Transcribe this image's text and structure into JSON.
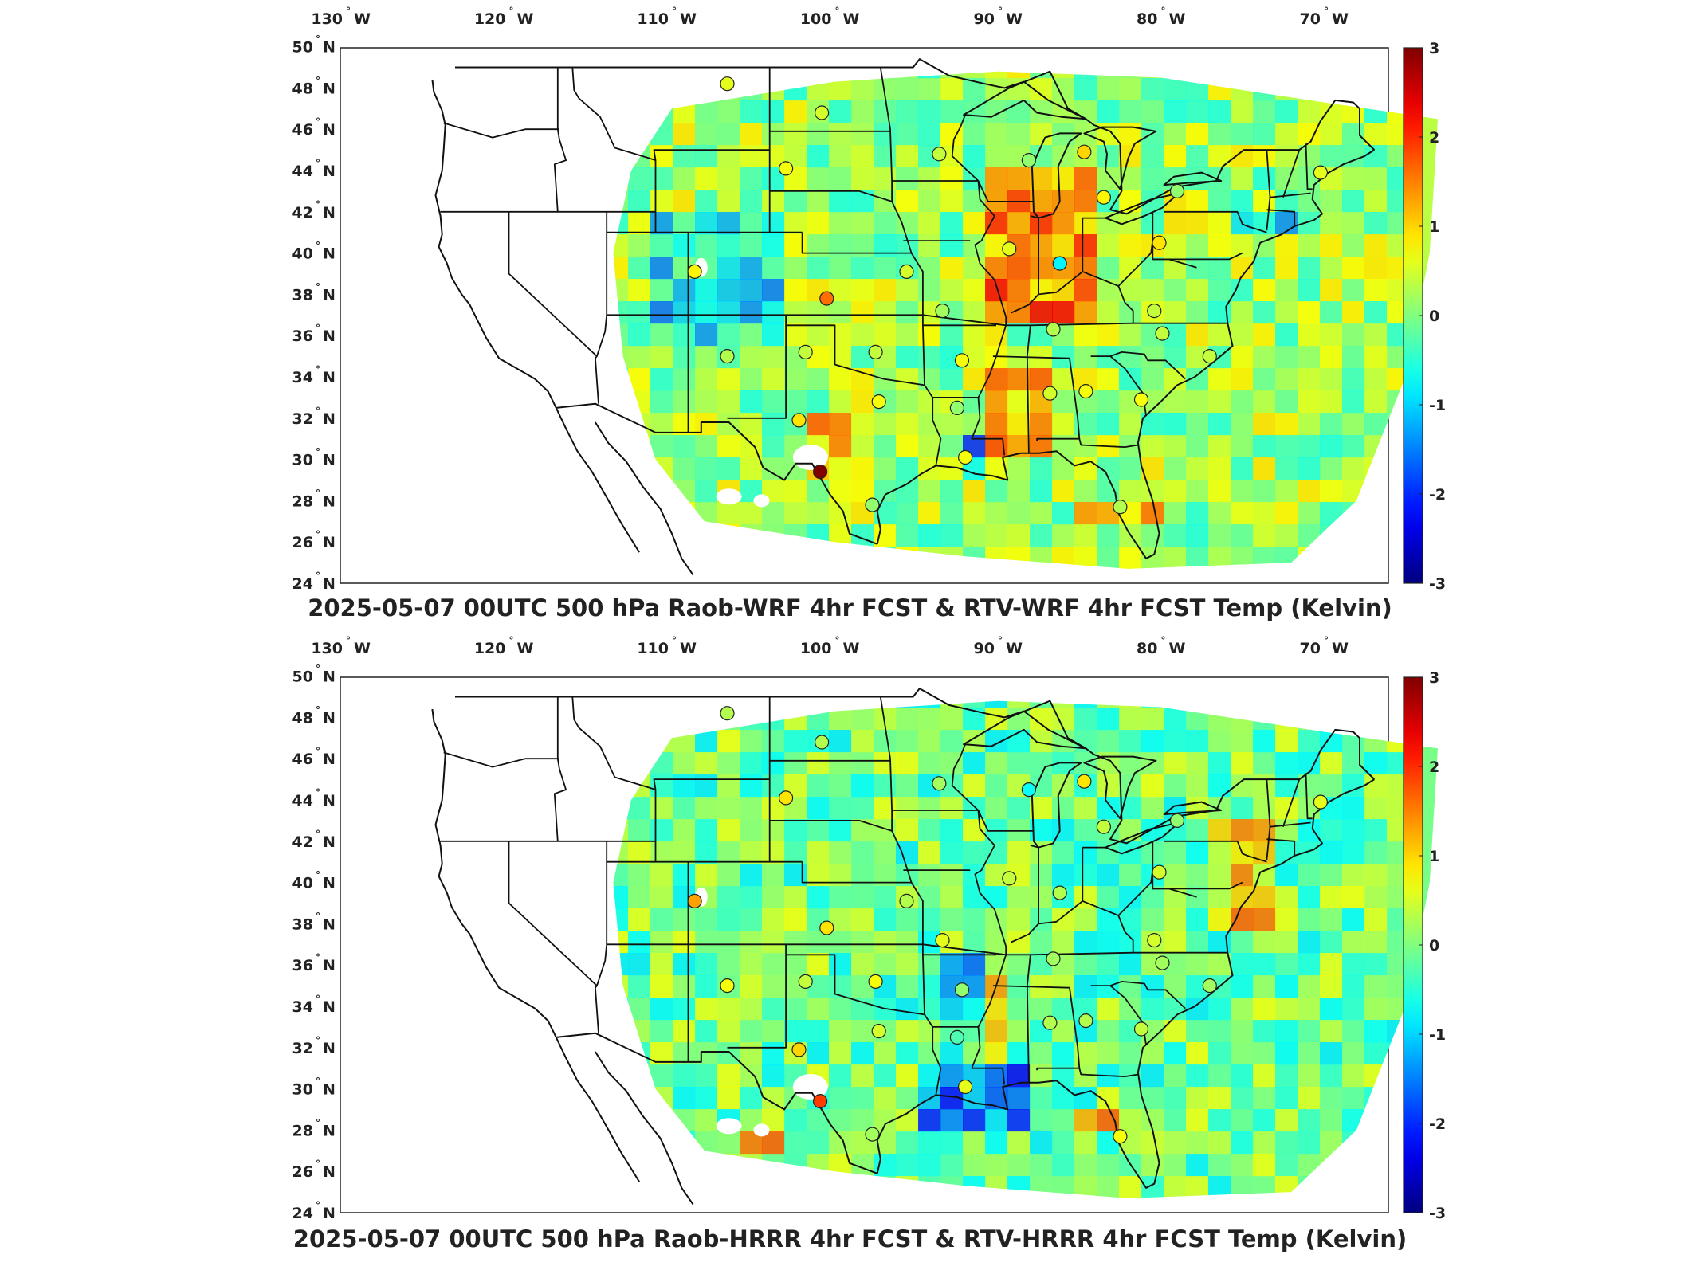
{
  "panels": [
    {
      "id": "wrf",
      "title": "2025-05-07 00UTC 500 hPa Raob-WRF 4hr FCST & RTV-WRF 4hr FCST Temp (Kelvin)",
      "dominant": "warm",
      "stations": [
        {
          "lon": -106.6,
          "lat": 48.2,
          "v": 0.6
        },
        {
          "lon": -100.8,
          "lat": 46.8,
          "v": 0.5
        },
        {
          "lon": -93.6,
          "lat": 44.8,
          "v": 0.4
        },
        {
          "lon": -88.1,
          "lat": 44.5,
          "v": 0.1
        },
        {
          "lon": -84.7,
          "lat": 44.9,
          "v": 1.0
        },
        {
          "lon": -83.5,
          "lat": 42.7,
          "v": 0.8
        },
        {
          "lon": -79.0,
          "lat": 43.0,
          "v": 0.1
        },
        {
          "lon": -70.2,
          "lat": 43.9,
          "v": 0.6
        },
        {
          "lon": -103.0,
          "lat": 44.1,
          "v": 0.7
        },
        {
          "lon": -108.6,
          "lat": 39.1,
          "v": 0.8
        },
        {
          "lon": -100.5,
          "lat": 37.8,
          "v": 1.6
        },
        {
          "lon": -95.6,
          "lat": 39.1,
          "v": 0.5
        },
        {
          "lon": -89.3,
          "lat": 40.2,
          "v": 0.6
        },
        {
          "lon": -86.2,
          "lat": 39.5,
          "v": -0.8
        },
        {
          "lon": -80.1,
          "lat": 40.5,
          "v": 0.9
        },
        {
          "lon": -93.4,
          "lat": 37.2,
          "v": 0.2
        },
        {
          "lon": -86.6,
          "lat": 36.3,
          "v": 0.3
        },
        {
          "lon": -80.4,
          "lat": 37.2,
          "v": 0.4
        },
        {
          "lon": -79.9,
          "lat": 36.1,
          "v": 0.4
        },
        {
          "lon": -77.0,
          "lat": 35.0,
          "v": 0.4
        },
        {
          "lon": -106.6,
          "lat": 35.0,
          "v": 0.3
        },
        {
          "lon": -101.8,
          "lat": 35.2,
          "v": 0.4
        },
        {
          "lon": -97.5,
          "lat": 35.2,
          "v": 0.4
        },
        {
          "lon": -92.2,
          "lat": 34.8,
          "v": 0.7
        },
        {
          "lon": -97.3,
          "lat": 32.8,
          "v": 0.7
        },
        {
          "lon": -102.2,
          "lat": 31.9,
          "v": 0.9
        },
        {
          "lon": -92.5,
          "lat": 32.5,
          "v": 0.1
        },
        {
          "lon": -86.8,
          "lat": 33.2,
          "v": 0.5
        },
        {
          "lon": -84.6,
          "lat": 33.3,
          "v": 0.7
        },
        {
          "lon": -81.2,
          "lat": 32.9,
          "v": 0.7
        },
        {
          "lon": -100.9,
          "lat": 29.4,
          "v": 3.0
        },
        {
          "lon": -97.7,
          "lat": 27.8,
          "v": 0.1
        },
        {
          "lon": -92.0,
          "lat": 30.1,
          "v": 0.7
        },
        {
          "lon": -82.5,
          "lat": 27.7,
          "v": 0.3
        }
      ]
    },
    {
      "id": "hrrr",
      "title": "2025-05-07 00UTC 500 hPa Raob-HRRR 4hr FCST & RTV-HRRR 4hr FCST Temp (Kelvin)",
      "dominant": "cool",
      "stations": [
        {
          "lon": -106.6,
          "lat": 48.2,
          "v": 0.3
        },
        {
          "lon": -100.8,
          "lat": 46.8,
          "v": 0.3
        },
        {
          "lon": -93.6,
          "lat": 44.8,
          "v": 0.2
        },
        {
          "lon": -88.1,
          "lat": 44.5,
          "v": -0.7
        },
        {
          "lon": -84.7,
          "lat": 44.9,
          "v": 0.9
        },
        {
          "lon": -83.5,
          "lat": 42.7,
          "v": 0.4
        },
        {
          "lon": -79.0,
          "lat": 43.0,
          "v": 0.1
        },
        {
          "lon": -70.2,
          "lat": 43.9,
          "v": 0.6
        },
        {
          "lon": -103.0,
          "lat": 44.1,
          "v": 0.9
        },
        {
          "lon": -108.6,
          "lat": 39.1,
          "v": 1.3
        },
        {
          "lon": -100.5,
          "lat": 37.8,
          "v": 0.9
        },
        {
          "lon": -95.6,
          "lat": 39.1,
          "v": 0.3
        },
        {
          "lon": -89.3,
          "lat": 40.2,
          "v": 0.4
        },
        {
          "lon": -86.2,
          "lat": 39.5,
          "v": 0.3
        },
        {
          "lon": -80.1,
          "lat": 40.5,
          "v": 0.5
        },
        {
          "lon": -93.4,
          "lat": 37.2,
          "v": 0.6
        },
        {
          "lon": -86.6,
          "lat": 36.3,
          "v": 0.2
        },
        {
          "lon": -80.4,
          "lat": 37.2,
          "v": 0.5
        },
        {
          "lon": -79.9,
          "lat": 36.1,
          "v": 0.2
        },
        {
          "lon": -77.0,
          "lat": 35.0,
          "v": 0.2
        },
        {
          "lon": -106.6,
          "lat": 35.0,
          "v": 0.7
        },
        {
          "lon": -101.8,
          "lat": 35.2,
          "v": 0.4
        },
        {
          "lon": -97.5,
          "lat": 35.2,
          "v": 0.7
        },
        {
          "lon": -92.2,
          "lat": 34.8,
          "v": 0.1
        },
        {
          "lon": -97.3,
          "lat": 32.8,
          "v": 0.5
        },
        {
          "lon": -102.2,
          "lat": 31.9,
          "v": 1.0
        },
        {
          "lon": -92.5,
          "lat": 32.5,
          "v": -0.3
        },
        {
          "lon": -86.8,
          "lat": 33.2,
          "v": 0.3
        },
        {
          "lon": -84.6,
          "lat": 33.3,
          "v": 0.3
        },
        {
          "lon": -81.2,
          "lat": 32.9,
          "v": 0.4
        },
        {
          "lon": -100.9,
          "lat": 29.4,
          "v": 1.9
        },
        {
          "lon": -97.7,
          "lat": 27.8,
          "v": 0.2
        },
        {
          "lon": -92.0,
          "lat": 30.1,
          "v": 0.6
        },
        {
          "lon": -82.5,
          "lat": 27.7,
          "v": 0.7
        }
      ]
    }
  ],
  "axes": {
    "lon_ticks": [
      {
        "value": -130,
        "num": "130",
        "hemi": "W"
      },
      {
        "value": -120,
        "num": "120",
        "hemi": "W"
      },
      {
        "value": -110,
        "num": "110",
        "hemi": "W"
      },
      {
        "value": -100,
        "num": "100",
        "hemi": "W"
      },
      {
        "value": -90,
        "num": "90",
        "hemi": "W"
      },
      {
        "value": -80,
        "num": "80",
        "hemi": "W"
      },
      {
        "value": -70,
        "num": "70",
        "hemi": "W"
      }
    ],
    "lat_ticks": [
      {
        "value": 50,
        "num": "50",
        "hemi": "N"
      },
      {
        "value": 48,
        "num": "48",
        "hemi": "N"
      },
      {
        "value": 46,
        "num": "46",
        "hemi": "N"
      },
      {
        "value": 44,
        "num": "44",
        "hemi": "N"
      },
      {
        "value": 42,
        "num": "42",
        "hemi": "N"
      },
      {
        "value": 40,
        "num": "40",
        "hemi": "N"
      },
      {
        "value": 38,
        "num": "38",
        "hemi": "N"
      },
      {
        "value": 36,
        "num": "36",
        "hemi": "N"
      },
      {
        "value": 34,
        "num": "34",
        "hemi": "N"
      },
      {
        "value": 32,
        "num": "32",
        "hemi": "N"
      },
      {
        "value": 30,
        "num": "30",
        "hemi": "N"
      },
      {
        "value": 28,
        "num": "28",
        "hemi": "N"
      },
      {
        "value": 26,
        "num": "26",
        "hemi": "N"
      },
      {
        "value": 24,
        "num": "24",
        "hemi": "N"
      }
    ],
    "degree_symbol": "°"
  },
  "colorbar": {
    "min": -3,
    "max": 3,
    "ticks": [
      {
        "value": 3,
        "label": "3"
      },
      {
        "value": 2,
        "label": "2"
      },
      {
        "value": 1,
        "label": "1"
      },
      {
        "value": 0,
        "label": "0"
      },
      {
        "value": -1,
        "label": "-1"
      },
      {
        "value": -2,
        "label": "-2"
      },
      {
        "value": -3,
        "label": "-3"
      }
    ],
    "colormap": "jet"
  }
}
